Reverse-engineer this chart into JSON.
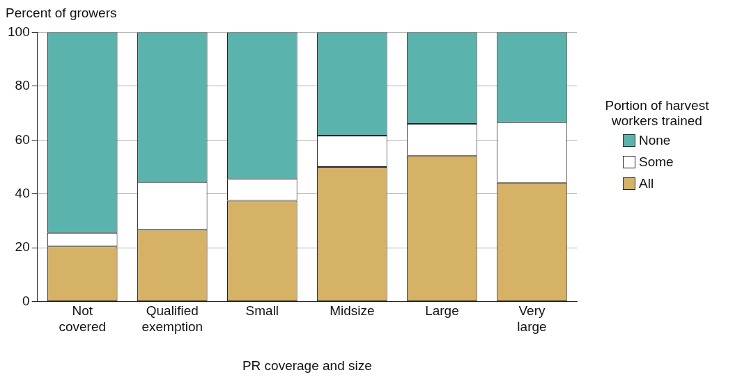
{
  "chart_data": {
    "type": "bar",
    "stacked": true,
    "xlabel": "PR coverage and size",
    "ylabel": "Percent of growers",
    "legend_title": "Portion of harvest workers trained",
    "legend": "right",
    "categories": [
      "Not covered",
      "Qualified exemption",
      "Small",
      "Midsize",
      "Large",
      "Very large"
    ],
    "series": [
      {
        "name": "All",
        "color": "#d6b266",
        "values": [
          20.5,
          26.7,
          37.5,
          50,
          54.2,
          44.1
        ]
      },
      {
        "name": "Some",
        "color": "#ffffff",
        "values": [
          5,
          17.7,
          8,
          11.6,
          11.8,
          22.5
        ]
      },
      {
        "name": "None",
        "color": "#5ab3ac",
        "values": [
          74.5,
          55.6,
          54.5,
          38.4,
          34,
          33.4
        ]
      }
    ],
    "ylim": [
      0,
      100
    ],
    "yticks": [
      0,
      20,
      40,
      60,
      80,
      100
    ],
    "grid": "y"
  }
}
